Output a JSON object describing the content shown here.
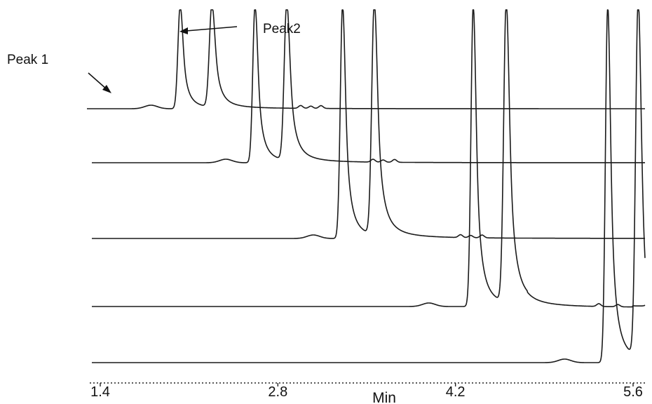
{
  "chart_data": {
    "type": "line",
    "title": "",
    "xlabel": "Min",
    "ylabel": "",
    "x_ticks": [
      1.4,
      2.8,
      4.2,
      5.6
    ],
    "x_tick_labels": [
      "1.4",
      "2.8",
      "4.2",
      "5.6"
    ],
    "xlim": [
      1.4,
      5.9
    ],
    "grid": false,
    "annotations": [
      {
        "text": "Peak 1",
        "points_to": "Peak 1"
      },
      {
        "text": "Peak2",
        "points_to": "Peak2"
      }
    ],
    "series": [
      {
        "minor_x": 1.8,
        "peak1_x": 2.03,
        "peak2_x": 2.28,
        "bumps_x": [
          2.98,
          3.06,
          3.14
        ],
        "tail_x": 2.62
      },
      {
        "minor_x": 2.39,
        "peak1_x": 2.62,
        "peak2_x": 2.87,
        "bumps_x": [
          3.55,
          3.63,
          3.72
        ],
        "tail_x": 3.21
      },
      {
        "minor_x": 3.08,
        "peak1_x": 3.31,
        "peak2_x": 3.56,
        "bumps_x": [
          4.24,
          4.32,
          4.41
        ],
        "tail_x": 3.89
      },
      {
        "minor_x": 3.99,
        "peak1_x": 4.34,
        "peak2_x": 4.6,
        "bumps_x": [
          5.33,
          5.48,
          5.72
        ],
        "tail_x": 4.85
      },
      {
        "minor_x": 5.06,
        "peak1_x": 5.4,
        "peak2_x": 5.64,
        "bumps_x": [],
        "tail_x": 5.82
      }
    ]
  }
}
